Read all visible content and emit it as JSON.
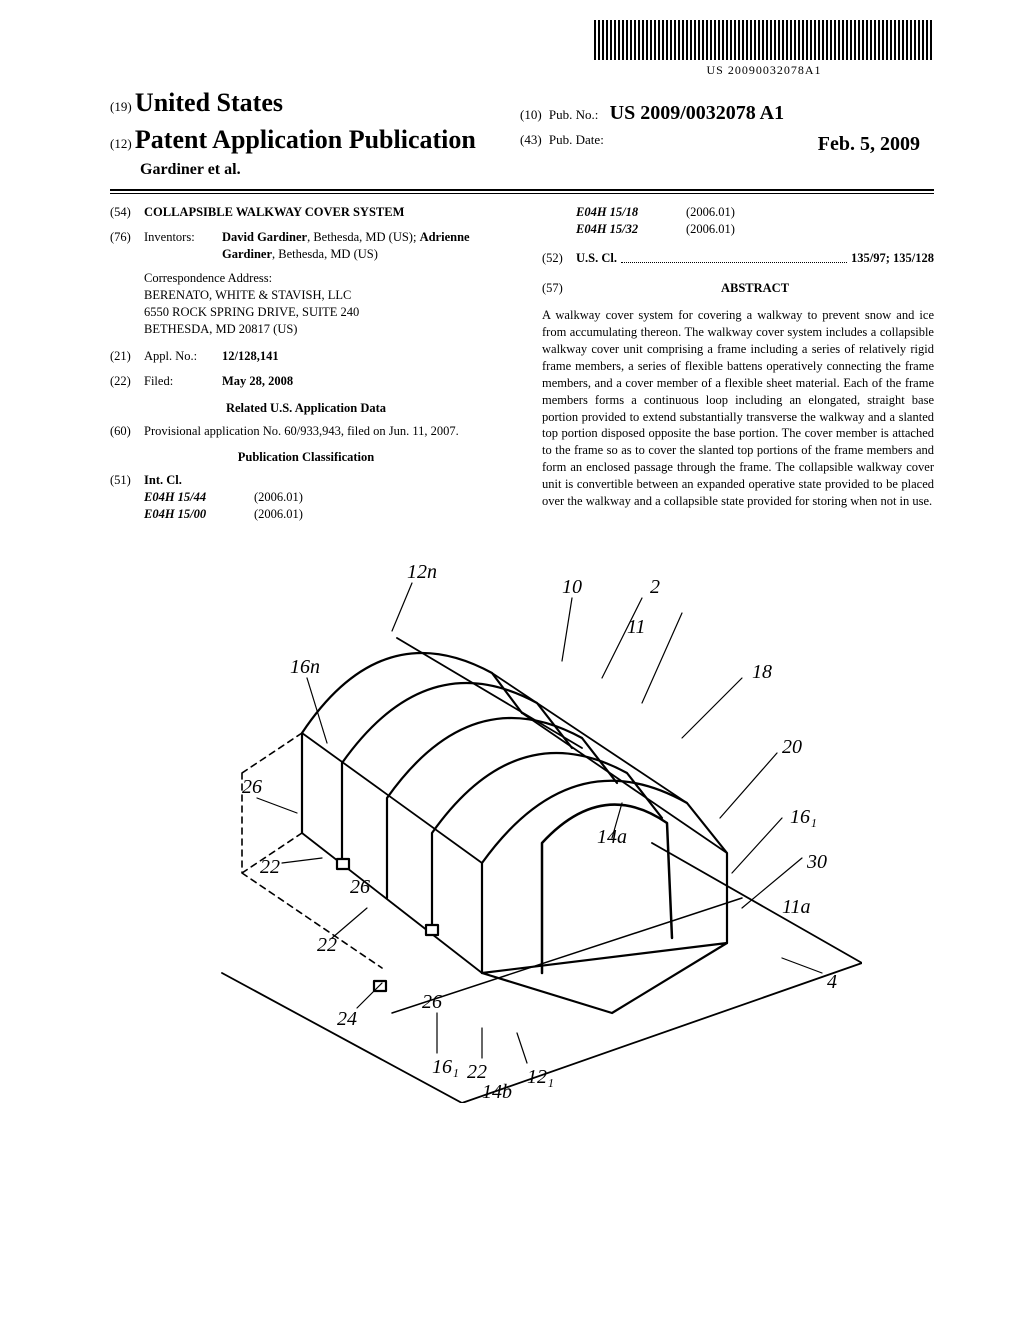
{
  "barcode_text": "US 20090032078A1",
  "header": {
    "code19": "(19)",
    "country": "United States",
    "code12": "(12)",
    "pub_type": "Patent Application Publication",
    "authors": "Gardiner et al.",
    "code10": "(10)",
    "pubno_label": "Pub. No.:",
    "pubno": "US 2009/0032078 A1",
    "code43": "(43)",
    "pubdate_label": "Pub. Date:",
    "pubdate": "Feb. 5, 2009"
  },
  "fields": {
    "f54": {
      "code": "(54)",
      "title": "COLLAPSIBLE WALKWAY COVER SYSTEM"
    },
    "f76": {
      "code": "(76)",
      "label": "Inventors:",
      "value_html": "<b>David Gardiner</b>, Bethesda, MD (US); <b>Adrienne Gardiner</b>, Bethesda, MD (US)"
    },
    "corr": {
      "label": "Correspondence Address:",
      "l1": "BERENATO, WHITE & STAVISH, LLC",
      "l2": "6550 ROCK SPRING DRIVE, SUITE 240",
      "l3": "BETHESDA, MD 20817 (US)"
    },
    "f21": {
      "code": "(21)",
      "label": "Appl. No.:",
      "value": "12/128,141"
    },
    "f22": {
      "code": "(22)",
      "label": "Filed:",
      "value": "May 28, 2008"
    },
    "related_h": "Related U.S. Application Data",
    "f60": {
      "code": "(60)",
      "value": "Provisional application No. 60/933,943, filed on Jun. 11, 2007."
    },
    "pubclass_h": "Publication Classification",
    "f51": {
      "code": "(51)",
      "label": "Int. Cl.",
      "rows": [
        {
          "cls": "E04H 15/44",
          "ver": "(2006.01)"
        },
        {
          "cls": "E04H 15/00",
          "ver": "(2006.01)"
        },
        {
          "cls": "E04H 15/18",
          "ver": "(2006.01)"
        },
        {
          "cls": "E04H 15/32",
          "ver": "(2006.01)"
        }
      ]
    },
    "f52": {
      "code": "(52)",
      "label": "U.S. Cl.",
      "value": "135/97; 135/128"
    },
    "f57": {
      "code": "(57)",
      "heading": "ABSTRACT"
    },
    "abstract": "A walkway cover system for covering a walkway to prevent snow and ice from accumulating thereon. The walkway cover system includes a collapsible walkway cover unit comprising a frame including a series of relatively rigid frame members, a series of flexible battens operatively connecting the frame members, and a cover member of a flexible sheet material. Each of the frame members forms a continuous loop including an elongated, straight base portion provided to extend substantially transverse the walkway and a slanted top portion disposed opposite the base portion. The cover member is attached to the frame so as to cover the slanted top portions of the frame members and form an enclosed passage through the frame. The collapsible walkway cover unit is convertible between an expanded operative state provided to be placed over the walkway and a collapsible state provided for storing when not in use."
  },
  "figure": {
    "labels": [
      "12n",
      "16n",
      "26",
      "22",
      "24",
      "26",
      "22",
      "16₁",
      "14b",
      "12₁",
      "22",
      "26",
      "14a",
      "10",
      "11",
      "18",
      "2",
      "20",
      "16₁",
      "11a",
      "30",
      "4"
    ]
  }
}
